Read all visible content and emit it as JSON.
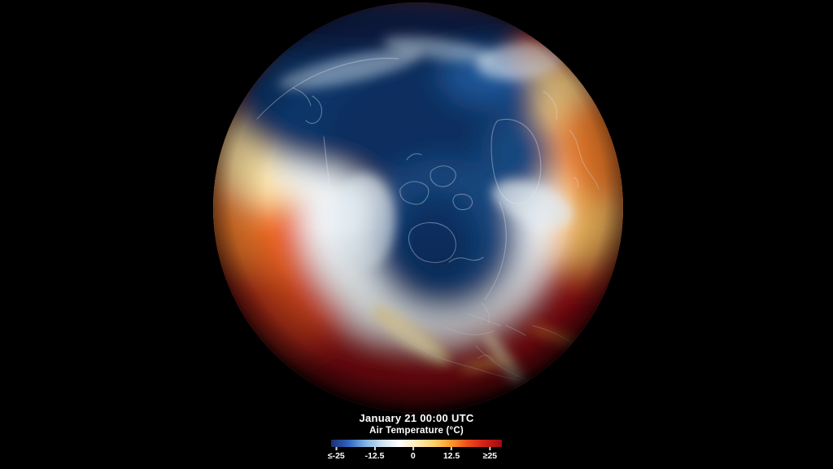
{
  "scene": {
    "background_color": "#000000"
  },
  "caption": {
    "datetime": "January 21 00:00 UTC",
    "variable_label": "Air Temperature (°C)"
  },
  "legend": {
    "colorbar": {
      "stops": [
        "#1c2f6e",
        "#2f63c0",
        "#7fb3e3",
        "#cfe2f2",
        "#ffffff",
        "#ffeab8",
        "#ffd26b",
        "#fd9b2a",
        "#ef4d1c",
        "#d02018",
        "#9d0d12"
      ],
      "ticks": [
        {
          "label": "≤-25",
          "pos": 3
        },
        {
          "label": "-12.5",
          "pos": 25.5
        },
        {
          "label": "0",
          "pos": 48
        },
        {
          "label": "12.5",
          "pos": 70.5
        },
        {
          "label": "≥25",
          "pos": 93
        }
      ]
    }
  },
  "globe": {
    "palette": {
      "deep_maroon": "#7a0c10",
      "dark_red": "#a01114",
      "red": "#c4221a",
      "orange_red": "#e8551f",
      "orange": "#ee7c2a",
      "amber": "#f3b65c",
      "tan": "#f2cc82",
      "pale_yellow": "#f9df9e",
      "cream": "#fdeebc",
      "white_band": "#eef3f6",
      "light_blue": "#8fb8dc",
      "mid_blue": "#1c5596",
      "arctic_blue": "#12467e",
      "deep_blue": "#0b3567",
      "navy": "#0a2f5e",
      "dark_navy": "#071f42",
      "hot_filament": "#fff3cd"
    }
  }
}
